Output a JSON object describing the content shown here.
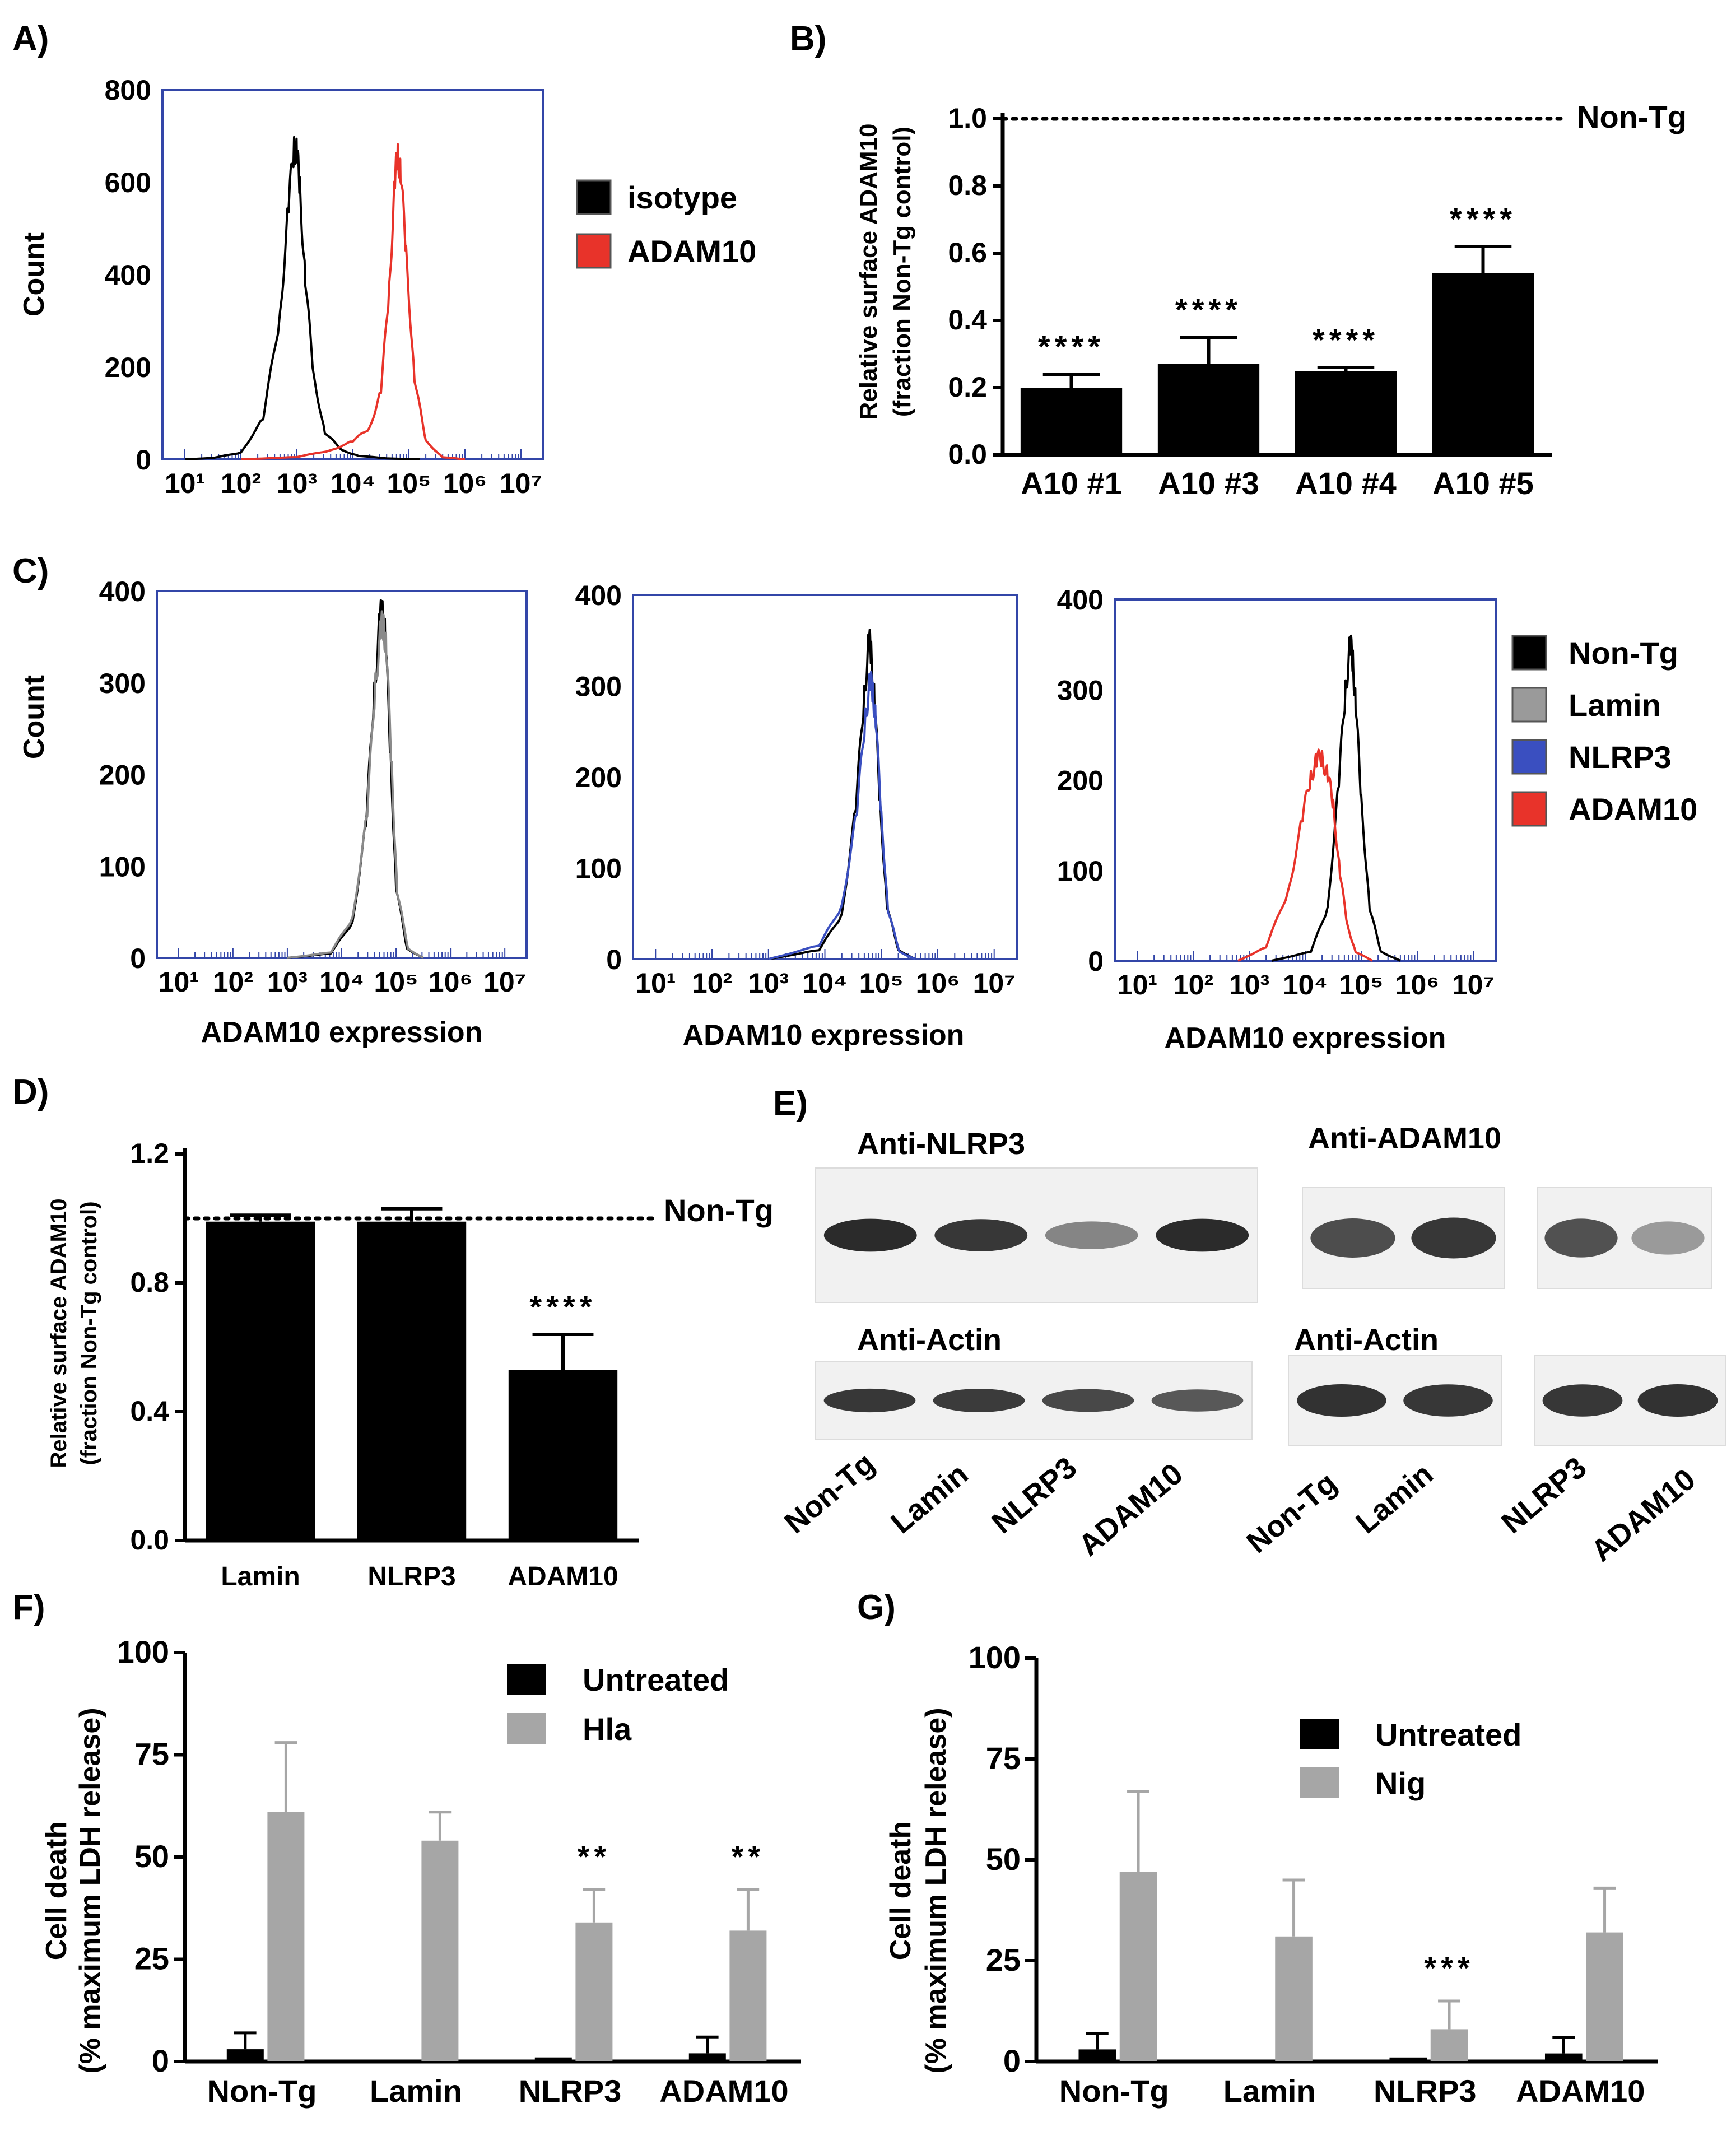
{
  "panel_labels": [
    "A)",
    "B)",
    "C)",
    "D)",
    "E)",
    "F)",
    "G)"
  ],
  "chart_data": [
    {
      "id": "A",
      "type": "histogram",
      "title": "",
      "ylabel": "Count",
      "ylim": [
        0,
        800
      ],
      "yticks": [
        "0",
        "200",
        "400",
        "600",
        "800"
      ],
      "xscale": "log",
      "xticks": [
        "10¹",
        "10²",
        "10³",
        "10⁴",
        "10⁵",
        "10⁶",
        "10⁷"
      ],
      "legend": [
        {
          "name": "isotype",
          "color": "#000000"
        },
        {
          "name": "ADAM10",
          "color": "#e8332a"
        }
      ],
      "series": [
        {
          "name": "isotype",
          "color": "#000000",
          "x": [
            1,
            1.5,
            2,
            2.4,
            2.7,
            2.85,
            2.95,
            3.0,
            3.05,
            3.15,
            3.3,
            3.5,
            3.8,
            4.1,
            4.6,
            5.2
          ],
          "y": [
            0,
            3,
            15,
            90,
            320,
            560,
            690,
            680,
            600,
            400,
            180,
            60,
            20,
            8,
            2,
            0
          ]
        },
        {
          "name": "ADAM10",
          "color": "#e8332a",
          "x": [
            2.0,
            3.0,
            3.6,
            4.0,
            4.3,
            4.5,
            4.65,
            4.75,
            4.8,
            4.85,
            4.95,
            5.1,
            5.3,
            5.6,
            6.0
          ],
          "y": [
            0,
            5,
            20,
            40,
            70,
            150,
            380,
            620,
            670,
            640,
            450,
            180,
            40,
            5,
            0
          ]
        }
      ]
    },
    {
      "id": "B",
      "type": "bar",
      "ylabel": "Relative surface ADAM10 (fraction Non-Tg control)",
      "ylim": [
        0,
        1.0
      ],
      "yticks": [
        "0.0",
        "0.2",
        "0.4",
        "0.6",
        "0.8",
        "1.0"
      ],
      "categories": [
        "A10 #1",
        "A10 #3",
        "A10 #4",
        "A10 #5"
      ],
      "values": [
        0.2,
        0.27,
        0.25,
        0.54
      ],
      "errors": [
        0.04,
        0.08,
        0.01,
        0.08
      ],
      "significance": [
        "****",
        "****",
        "****",
        "****"
      ],
      "reference_line": {
        "value": 1.0,
        "label": "Non-Tg"
      },
      "bar_color": "#000000"
    },
    {
      "id": "C1",
      "type": "histogram",
      "ylabel": "Count",
      "xlabel": "ADAM10 expression",
      "ylim": [
        0,
        400
      ],
      "yticks": [
        "0",
        "100",
        "200",
        "300",
        "400"
      ],
      "xticks": [
        "10¹",
        "10²",
        "10³",
        "10⁴",
        "10⁵",
        "10⁶",
        "10⁷"
      ],
      "series": [
        {
          "name": "Non-Tg",
          "color": "#000000",
          "x": [
            3.0,
            3.8,
            4.2,
            4.45,
            4.6,
            4.7,
            4.75,
            4.8,
            4.9,
            5.0,
            5.2,
            5.5
          ],
          "y": [
            0,
            5,
            40,
            150,
            300,
            375,
            385,
            360,
            220,
            80,
            10,
            0
          ]
        },
        {
          "name": "Lamin",
          "color": "#8a8a8a",
          "x": [
            3.0,
            3.8,
            4.2,
            4.47,
            4.62,
            4.72,
            4.77,
            4.82,
            4.92,
            5.02,
            5.22,
            5.5
          ],
          "y": [
            0,
            6,
            45,
            160,
            310,
            365,
            370,
            345,
            210,
            75,
            10,
            0
          ]
        }
      ]
    },
    {
      "id": "C2",
      "type": "histogram",
      "xlabel": "ADAM10 expression",
      "ylim": [
        0,
        400
      ],
      "yticks": [
        "0",
        "100",
        "200",
        "300",
        "400"
      ],
      "xticks": [
        "10¹",
        "10²",
        "10³",
        "10⁴",
        "10⁵",
        "10⁶",
        "10⁷"
      ],
      "series": [
        {
          "name": "Non-Tg",
          "color": "#000000",
          "x": [
            3.0,
            3.9,
            4.3,
            4.55,
            4.7,
            4.78,
            4.82,
            4.88,
            4.98,
            5.1,
            5.3,
            5.6
          ],
          "y": [
            0,
            10,
            50,
            170,
            300,
            355,
            345,
            290,
            170,
            60,
            10,
            0
          ]
        },
        {
          "name": "NLRP3",
          "color": "#3a4fc0",
          "x": [
            3.0,
            3.9,
            4.3,
            4.57,
            4.72,
            4.8,
            4.85,
            4.9,
            5.0,
            5.12,
            5.32,
            5.6
          ],
          "y": [
            0,
            15,
            60,
            165,
            275,
            310,
            300,
            270,
            160,
            55,
            8,
            0
          ]
        }
      ]
    },
    {
      "id": "C3",
      "type": "histogram",
      "xlabel": "ADAM10 expression",
      "ylim": [
        0,
        400
      ],
      "yticks": [
        "0",
        "100",
        "200",
        "300",
        "400"
      ],
      "xticks": [
        "10¹",
        "10²",
        "10³",
        "10⁴",
        "10⁵",
        "10⁶",
        "10⁷"
      ],
      "legend": [
        {
          "name": "Non-Tg",
          "color": "#000000"
        },
        {
          "name": "Lamin",
          "color": "#9a9a9a"
        },
        {
          "name": "NLRP3",
          "color": "#3a4fc0"
        },
        {
          "name": "ADAM10",
          "color": "#e8332a"
        }
      ],
      "series": [
        {
          "name": "Non-Tg",
          "color": "#000000",
          "x": [
            3.4,
            4.1,
            4.4,
            4.6,
            4.72,
            4.8,
            4.85,
            4.9,
            5.0,
            5.15,
            5.35,
            5.7
          ],
          "y": [
            0,
            10,
            60,
            200,
            310,
            355,
            340,
            290,
            180,
            60,
            10,
            0
          ]
        },
        {
          "name": "ADAM10",
          "color": "#e8332a",
          "x": [
            2.8,
            3.3,
            3.7,
            3.95,
            4.1,
            4.2,
            4.3,
            4.4,
            4.5,
            4.62,
            4.75,
            4.9,
            5.2
          ],
          "y": [
            0,
            15,
            80,
            160,
            210,
            225,
            230,
            210,
            175,
            100,
            40,
            10,
            0
          ]
        }
      ]
    },
    {
      "id": "D",
      "type": "bar",
      "ylabel": "Relative surface ADAM10 (fraction Non-Tg control)",
      "ylim": [
        0,
        1.2
      ],
      "yticks": [
        "0.0",
        "0.4",
        "0.8",
        "1.2"
      ],
      "categories": [
        "Lamin",
        "NLRP3",
        "ADAM10"
      ],
      "values": [
        0.99,
        0.99,
        0.53
      ],
      "errors": [
        0.02,
        0.04,
        0.11
      ],
      "significance": [
        "",
        "",
        "****"
      ],
      "reference_line": {
        "value": 1.0,
        "label": "Non-Tg"
      },
      "bar_color": "#000000"
    },
    {
      "id": "F",
      "type": "bar",
      "ylabel": "Cell death (% maximum LDH release)",
      "ylim": [
        0,
        100
      ],
      "yticks": [
        "0",
        "25",
        "50",
        "75",
        "100"
      ],
      "categories": [
        "Non-Tg",
        "Lamin",
        "NLRP3",
        "ADAM10"
      ],
      "series": [
        {
          "name": "Untreated",
          "color": "#000000",
          "values": [
            3,
            0,
            1,
            2
          ],
          "errors": [
            4,
            0,
            0,
            4
          ]
        },
        {
          "name": "Hla",
          "color": "#a6a6a6",
          "values": [
            61,
            54,
            34,
            32
          ],
          "errors": [
            17,
            7,
            8,
            10
          ]
        }
      ],
      "significance": [
        "",
        "",
        "**",
        "**"
      ]
    },
    {
      "id": "G",
      "type": "bar",
      "ylabel": "Cell death (% maximum LDH release)",
      "ylim": [
        0,
        100
      ],
      "yticks": [
        "0",
        "25",
        "50",
        "75",
        "100"
      ],
      "categories": [
        "Non-Tg",
        "Lamin",
        "NLRP3",
        "ADAM10"
      ],
      "series": [
        {
          "name": "Untreated",
          "color": "#000000",
          "values": [
            3,
            0,
            1,
            2
          ],
          "errors": [
            4,
            0,
            0,
            4
          ]
        },
        {
          "name": "Nig",
          "color": "#a6a6a6",
          "values": [
            47,
            31,
            8,
            32
          ],
          "errors": [
            20,
            14,
            7,
            11
          ]
        }
      ],
      "significance": [
        "",
        "",
        "***",
        ""
      ]
    }
  ],
  "blots": {
    "left_top_label": "Anti-NLRP3",
    "left_bottom_label": "Anti-Actin",
    "left_lanes": [
      "Non-Tg",
      "Lamin",
      "NLRP3",
      "ADAM10"
    ],
    "left_top_intensity": [
      0.95,
      0.9,
      0.55,
      0.95
    ],
    "left_bottom_intensity": [
      0.9,
      0.88,
      0.82,
      0.75
    ],
    "right_top_label": "Anti-ADAM10",
    "right_bottom_label": "Anti-Actin",
    "right_lanes": [
      "Non-Tg",
      "Lamin",
      "NLRP3",
      "ADAM10"
    ],
    "right_top_intensity": [
      0.8,
      0.9,
      0.78,
      0.45
    ],
    "right_bottom_intensity": [
      0.92,
      0.9,
      0.9,
      0.92
    ]
  }
}
